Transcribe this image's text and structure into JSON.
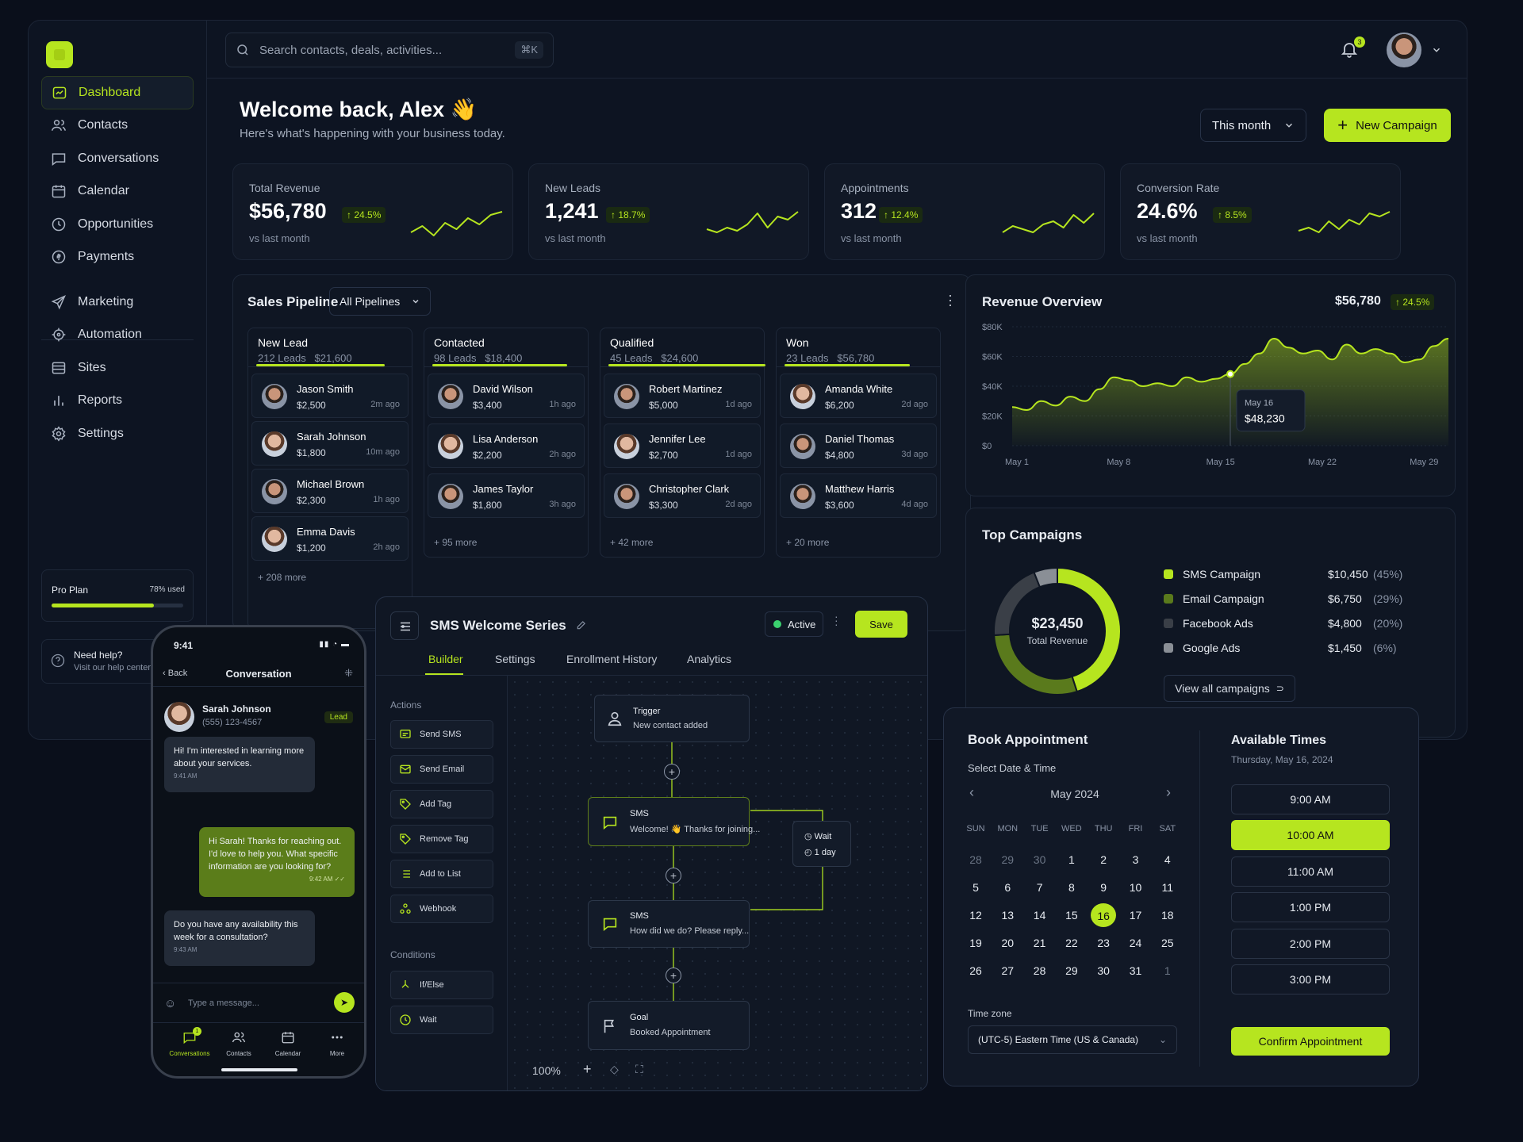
{
  "colors": {
    "accent": "#b6e51f",
    "bg": "#0a0f1b",
    "panel": "#111826"
  },
  "header": {
    "search_placeholder": "Search contacts, deals, activities...",
    "shortcut": "⌘K",
    "notif_count": "3"
  },
  "sidebar": {
    "items": [
      {
        "label": "Dashboard",
        "icon": "dashboard-icon"
      },
      {
        "label": "Contacts",
        "icon": "users-icon"
      },
      {
        "label": "Conversations",
        "icon": "chat-icon"
      },
      {
        "label": "Calendar",
        "icon": "calendar-icon"
      },
      {
        "label": "Opportunities",
        "icon": "opportunities-icon"
      },
      {
        "label": "Payments",
        "icon": "payments-icon"
      }
    ],
    "items2": [
      {
        "label": "Marketing",
        "icon": "send-icon"
      },
      {
        "label": "Automation",
        "icon": "automation-icon"
      },
      {
        "label": "Sites",
        "icon": "sites-icon"
      },
      {
        "label": "Reports",
        "icon": "reports-icon"
      },
      {
        "label": "Settings",
        "icon": "gear-icon"
      }
    ],
    "plan": {
      "name": "Pro Plan",
      "used": "78% used",
      "fraction": 0.78
    },
    "help": {
      "title": "Need help?",
      "subtitle": "Visit our help center"
    }
  },
  "welcome": {
    "title": "Welcome back, Alex 👋",
    "subtitle": "Here's what's happening with your business today.",
    "range": "This month",
    "new_campaign": "New Campaign"
  },
  "stats": [
    {
      "label": "Total Revenue",
      "value": "$56,780",
      "change": "24.5%",
      "sub": "vs last month"
    },
    {
      "label": "New Leads",
      "value": "1,241",
      "change": "18.7%",
      "sub": "vs last month"
    },
    {
      "label": "Appointments",
      "value": "312",
      "change": "12.4%",
      "sub": "vs last month"
    },
    {
      "label": "Conversion Rate",
      "value": "24.6%",
      "change": "8.5%",
      "sub": "vs last month"
    }
  ],
  "pipeline": {
    "title": "Sales Pipeline",
    "filter": "All Pipelines",
    "columns": [
      {
        "name": "New Lead",
        "meta": "212 Leads   $21,600",
        "more": "+ 208 more",
        "cards": [
          {
            "name": "Jason Smith",
            "amount": "$2,500",
            "time": "2m ago"
          },
          {
            "name": "Sarah Johnson",
            "amount": "$1,800",
            "time": "10m ago"
          },
          {
            "name": "Michael Brown",
            "amount": "$2,300",
            "time": "1h ago"
          },
          {
            "name": "Emma Davis",
            "amount": "$1,200",
            "time": "2h ago"
          }
        ]
      },
      {
        "name": "Contacted",
        "meta": "98 Leads   $18,400",
        "more": "+ 95 more",
        "cards": [
          {
            "name": "David Wilson",
            "amount": "$3,400",
            "time": "1h ago"
          },
          {
            "name": "Lisa Anderson",
            "amount": "$2,200",
            "time": "2h ago"
          },
          {
            "name": "James Taylor",
            "amount": "$1,800",
            "time": "3h ago"
          }
        ]
      },
      {
        "name": "Qualified",
        "meta": "45 Leads   $24,600",
        "more": "+ 42 more",
        "cards": [
          {
            "name": "Robert Martinez",
            "amount": "$5,000",
            "time": "1d ago"
          },
          {
            "name": "Jennifer Lee",
            "amount": "$2,700",
            "time": "1d ago"
          },
          {
            "name": "Christopher Clark",
            "amount": "$3,300",
            "time": "2d ago"
          }
        ]
      },
      {
        "name": "Won",
        "meta": "23 Leads   $56,780",
        "more": "+ 20 more",
        "cards": [
          {
            "name": "Amanda White",
            "amount": "$6,200",
            "time": "2d ago"
          },
          {
            "name": "Daniel Thomas",
            "amount": "$4,800",
            "time": "3d ago"
          },
          {
            "name": "Matthew Harris",
            "amount": "$3,600",
            "time": "4d ago"
          }
        ]
      }
    ]
  },
  "revenue": {
    "title": "Revenue Overview",
    "total": "$56,780",
    "change": "24.5%",
    "tooltip_date": "May 16",
    "tooltip_value": "$48,230"
  },
  "chart_data": {
    "type": "area",
    "ylim": [
      0,
      80000
    ],
    "yticks": [
      "$80K",
      "$60K",
      "$40K",
      "$20K",
      "$0"
    ],
    "xticks": [
      "May 1",
      "May 8",
      "May 15",
      "May 22",
      "May 29"
    ],
    "x": [
      1,
      2,
      3,
      4,
      5,
      6,
      7,
      8,
      9,
      10,
      11,
      12,
      13,
      14,
      15,
      16,
      17,
      18,
      19,
      20,
      21,
      22,
      23,
      24,
      25,
      26,
      27,
      28,
      29,
      30,
      31
    ],
    "values": [
      26000,
      24000,
      30000,
      27000,
      33000,
      30000,
      38000,
      46000,
      44000,
      40000,
      42000,
      40000,
      46000,
      43000,
      45000,
      48230,
      55000,
      62000,
      72000,
      66000,
      62000,
      64000,
      58000,
      68000,
      62000,
      65000,
      62000,
      56000,
      58000,
      67000,
      72000
    ]
  },
  "campaigns": {
    "title": "Top Campaigns",
    "total": "$23,450",
    "total_label": "Total Revenue",
    "link": "View all campaigns",
    "items": [
      {
        "name": "SMS Campaign",
        "value": "$10,450",
        "pct": "(45%)",
        "color": "#b6e51f",
        "frac": 0.45
      },
      {
        "name": "Email Campaign",
        "value": "$6,750",
        "pct": "(29%)",
        "color": "#5a7a1c",
        "frac": 0.29
      },
      {
        "name": "Facebook Ads",
        "value": "$4,800",
        "pct": "(20%)",
        "color": "#3a3f47",
        "frac": 0.2
      },
      {
        "name": "Google Ads",
        "value": "$1,450",
        "pct": "(6%)",
        "color": "#8a8f96",
        "frac": 0.06
      }
    ]
  },
  "builder": {
    "title": "SMS Welcome Series",
    "status": "Active",
    "save": "Save",
    "tabs": [
      "Builder",
      "Settings",
      "Enrollment History",
      "Analytics"
    ],
    "actions_label": "Actions",
    "conditions_label": "Conditions",
    "actions": [
      {
        "label": "Send SMS",
        "icon": "sms-icon"
      },
      {
        "label": "Send Email",
        "icon": "mail-icon"
      },
      {
        "label": "Add Tag",
        "icon": "tag-icon"
      },
      {
        "label": "Remove Tag",
        "icon": "tag-icon"
      },
      {
        "label": "Add to List",
        "icon": "list-icon"
      },
      {
        "label": "Webhook",
        "icon": "webhook-icon"
      }
    ],
    "conditions": [
      {
        "label": "If/Else",
        "icon": "branch-icon"
      },
      {
        "label": "Wait",
        "icon": "clock-icon"
      }
    ],
    "nodes": {
      "trigger_t": "Trigger",
      "trigger_s": "New contact added",
      "sms1_t": "SMS",
      "sms1_s": "Welcome! 👋 Thanks for joining...",
      "wait_t": "Wait",
      "wait_s": "1 day",
      "sms2_t": "SMS",
      "sms2_s": "How did we do? Please reply...",
      "goal_t": "Goal",
      "goal_s": "Booked Appointment"
    },
    "zoom": "100%"
  },
  "phone": {
    "time": "9:41",
    "back": "Back",
    "title": "Conversation",
    "contact": "Sarah Johnson",
    "phone": "(555) 123-4567",
    "tag": "Lead",
    "messages": [
      {
        "text": "Hi! I'm interested in learning more about your services.",
        "time": "9:41 AM",
        "me": false
      },
      {
        "text": "Hi Sarah! Thanks for reaching out. I'd love to help you. What specific information are you looking for?",
        "time": "9:42 AM ✓✓",
        "me": true
      },
      {
        "text": "Do you have any availability this week for a consultation?",
        "time": "9:43 AM",
        "me": false
      }
    ],
    "input_placeholder": "Type a message...",
    "tabs": [
      "Conversations",
      "Contacts",
      "Calendar",
      "More"
    ],
    "badge": "1"
  },
  "booking": {
    "title": "Book Appointment",
    "subtitle": "Select Date & Time",
    "month": "May 2024",
    "days": [
      "SUN",
      "MON",
      "TUE",
      "WED",
      "THU",
      "FRI",
      "SAT"
    ],
    "dates": [
      "28",
      "29",
      "30",
      "1",
      "2",
      "3",
      "4",
      "5",
      "6",
      "7",
      "8",
      "9",
      "10",
      "11",
      "12",
      "13",
      "14",
      "15",
      "16",
      "17",
      "18",
      "19",
      "20",
      "21",
      "22",
      "23",
      "24",
      "25",
      "26",
      "27",
      "28",
      "29",
      "30",
      "31",
      "1"
    ],
    "tz_label": "Time zone",
    "tz": "(UTC-5) Eastern Time (US & Canada)",
    "avail_title": "Available Times",
    "avail_date": "Thursday, May 16, 2024",
    "times": [
      "9:00 AM",
      "10:00 AM",
      "11:00 AM",
      "1:00 PM",
      "2:00 PM",
      "3:00 PM"
    ],
    "confirm": "Confirm Appointment"
  }
}
